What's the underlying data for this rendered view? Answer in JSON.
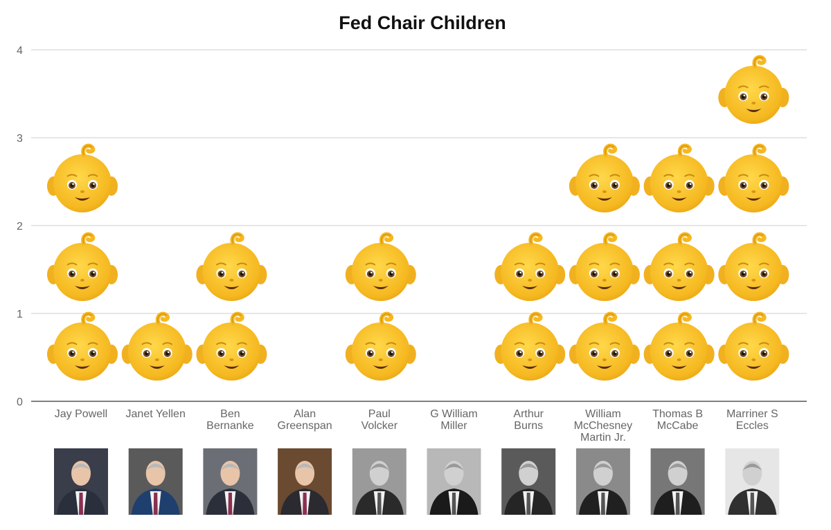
{
  "chart_data": {
    "type": "bar",
    "title": "Fed Chair Children",
    "xlabel": "",
    "ylabel": "",
    "ylim": [
      0,
      4
    ],
    "yticks": [
      "0",
      "1",
      "2",
      "3",
      "4"
    ],
    "grid": true,
    "mark": "baby-face-emoji",
    "categories": [
      [
        "Jay Powell"
      ],
      [
        "Janet Yellen"
      ],
      [
        "Ben",
        "Bernanke"
      ],
      [
        "Alan",
        "Greenspan"
      ],
      [
        "Paul",
        "Volcker"
      ],
      [
        "G William",
        "Miller"
      ],
      [
        "Arthur",
        "Burns"
      ],
      [
        "William",
        "McChesney",
        "Martin Jr."
      ],
      [
        "Thomas B",
        "McCabe"
      ],
      [
        "Marriner S",
        "Eccles"
      ]
    ],
    "values": [
      3,
      1,
      2,
      0,
      2,
      0,
      2,
      3,
      3,
      4
    ],
    "portraits": [
      {
        "tone": "color",
        "suit": "#2a2f3c",
        "bg": "#3a3d4a"
      },
      {
        "tone": "color",
        "suit": "#1f3f6e",
        "bg": "#5a5a5a"
      },
      {
        "tone": "color",
        "suit": "#2b2f3a",
        "bg": "#6b6e74"
      },
      {
        "tone": "color",
        "suit": "#2a2a30",
        "bg": "#6a4a30"
      },
      {
        "tone": "gray",
        "suit": "#2a2a2a",
        "bg": "#9a9a9a"
      },
      {
        "tone": "gray",
        "suit": "#1a1a1a",
        "bg": "#b8b8b8"
      },
      {
        "tone": "gray",
        "suit": "#252525",
        "bg": "#5a5a5a"
      },
      {
        "tone": "gray",
        "suit": "#202020",
        "bg": "#8a8a8a"
      },
      {
        "tone": "gray",
        "suit": "#1e1e1e",
        "bg": "#777777"
      },
      {
        "tone": "gray",
        "suit": "#303030",
        "bg": "#e6e6e6"
      }
    ],
    "colors": {
      "emoji_face": "#F9C22E",
      "emoji_face_dark": "#E8A412",
      "emoji_eye": "#3a2a1a"
    }
  }
}
